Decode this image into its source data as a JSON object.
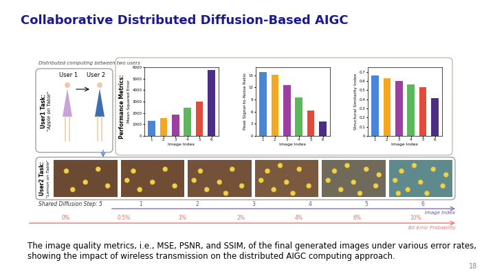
{
  "slide": {
    "title": "Collaborative Distributed Diffusion-Based AIGC",
    "page": 18,
    "caption": "The image quality metrics, i.e., MSE, PSNR, and SSIM, of the final generated images under various error rates, showing the impact of wireless transmission on the distributed AIGC computing approach.",
    "users_panel": {
      "heading": "Distributed computing between two users",
      "user1": "User 1",
      "user2": "User 2",
      "task_label": "User1 Task:",
      "task": "\"Apple on Table\""
    },
    "metrics_label": "Performance Metrics:",
    "images_row": {
      "task_label": "User2 Task:",
      "task": "\"Lemon on Table\"",
      "shared_step": "Shared Diffusion Step: 5",
      "index_label": "Image Index",
      "indices": [
        1,
        2,
        3,
        4,
        5,
        6
      ],
      "error_label": "Bit Error Probability",
      "error_rates": [
        "0%",
        "0.5%",
        "1%",
        "2%",
        "4%",
        "6%",
        "10%"
      ]
    }
  },
  "chart_data": [
    {
      "type": "bar",
      "xlabel": "Image Index",
      "ylabel": "Mean Squared Error",
      "categories": [
        "1",
        "2",
        "3",
        "4",
        "5",
        "6"
      ],
      "values": [
        1300,
        1550,
        1850,
        2450,
        3000,
        5750
      ],
      "colors": [
        "#4a86d8",
        "#f5a623",
        "#9b3fa0",
        "#5cb85c",
        "#e04b3c",
        "#4b2e83"
      ],
      "ylim": [
        0,
        6000
      ],
      "yticks": [
        0,
        1000,
        2000,
        3000,
        4000,
        5000,
        6000
      ],
      "grid": false
    },
    {
      "type": "bar",
      "xlabel": "Image Index",
      "ylabel": "Peak Signal-to-Noise Ratio",
      "categories": [
        "1",
        "2",
        "3",
        "4",
        "5",
        "6"
      ],
      "values": [
        15.8,
        15.2,
        12.6,
        9.5,
        6.3,
        3.6
      ],
      "colors": [
        "#4a86d8",
        "#f5a623",
        "#9b3fa0",
        "#5cb85c",
        "#e04b3c",
        "#4b2e83"
      ],
      "ylim": [
        0,
        17
      ],
      "yticks": [
        0,
        3,
        6,
        9,
        12,
        15
      ],
      "grid": false
    },
    {
      "type": "bar",
      "xlabel": "Image Index",
      "ylabel": "Structural Similarity Index",
      "categories": [
        "1",
        "2",
        "3",
        "4",
        "5",
        "6"
      ],
      "values": [
        0.66,
        0.63,
        0.6,
        0.56,
        0.53,
        0.41
      ],
      "colors": [
        "#4a86d8",
        "#f5a623",
        "#9b3fa0",
        "#5cb85c",
        "#e04b3c",
        "#4b2e83"
      ],
      "ylim": [
        0,
        0.75
      ],
      "yticks": [
        0,
        0.1,
        0.2,
        0.3,
        0.4,
        0.5,
        0.6,
        0.7
      ],
      "grid": false
    }
  ]
}
